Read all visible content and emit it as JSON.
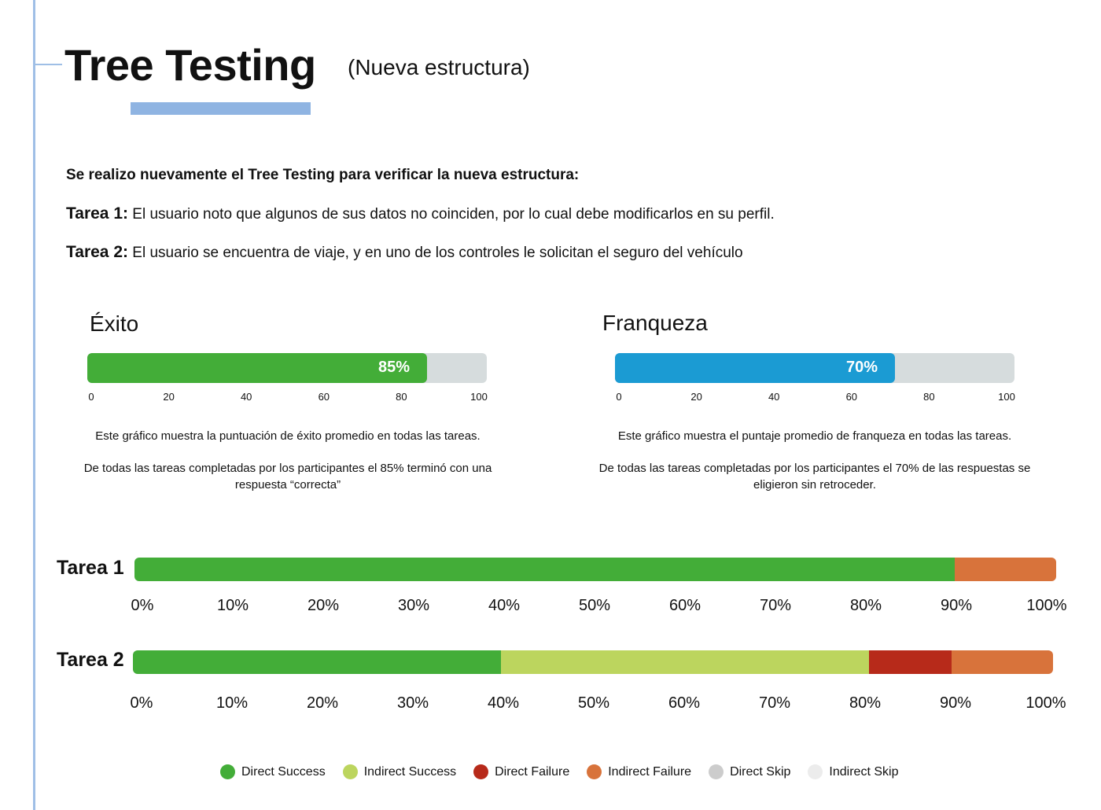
{
  "header": {
    "title": "Tree Testing",
    "subtitle": "(Nueva estructura)"
  },
  "intro": {
    "lead": "Se realizo nuevamente el Tree Testing para verificar la nueva estructura:",
    "task1_label": "Tarea 1:",
    "task1_text": " El usuario noto que algunos de sus datos no coinciden, por lo cual debe modificarlos en su perfil.",
    "task2_label": "Tarea 2:",
    "task2_text": " El usuario se encuentra de viaje, y en uno de los controles le solicitan el seguro del vehículo"
  },
  "chart_data": [
    {
      "type": "bar",
      "title": "Éxito",
      "value": 85,
      "value_label": "85%",
      "xlim": [
        0,
        100
      ],
      "ticks": [
        "0",
        "20",
        "40",
        "60",
        "80",
        "100"
      ],
      "color": "#43ad38",
      "track_color": "#d6dcdd",
      "description_1": "Este gráfico muestra la puntuación de éxito promedio en todas las tareas.",
      "description_2": "De todas las tareas completadas por los participantes el 85% terminó con una respuesta “correcta”"
    },
    {
      "type": "bar",
      "title": "Franqueza",
      "value": 70,
      "value_label": "70%",
      "xlim": [
        0,
        100
      ],
      "ticks": [
        "0",
        "20",
        "40",
        "60",
        "80",
        "100"
      ],
      "color": "#1b9bd3",
      "track_color": "#d6dcdd",
      "description_1": "Este gráfico muestra el puntaje promedio de franqueza en todas las tareas.",
      "description_2": "De todas las tareas completadas por los participantes el 70% de las respuestas se eligieron sin retroceder."
    },
    {
      "type": "bar",
      "stacked": true,
      "orientation": "horizontal",
      "categories": [
        "Tarea 1",
        "Tarea 2"
      ],
      "series": [
        {
          "name": "Direct Success",
          "color": "#43ad38",
          "values": [
            89,
            40
          ]
        },
        {
          "name": "Indirect Success",
          "color": "#bcd55e",
          "values": [
            0,
            40
          ]
        },
        {
          "name": "Direct Failure",
          "color": "#b72a1a",
          "values": [
            0,
            9
          ]
        },
        {
          "name": "Indirect Failure",
          "color": "#d8733b",
          "values": [
            11,
            11
          ]
        },
        {
          "name": "Direct Skip",
          "color": "#cccccc",
          "values": [
            0,
            0
          ]
        },
        {
          "name": "Indirect Skip",
          "color": "#ececec",
          "values": [
            0,
            0
          ]
        }
      ],
      "xlim": [
        0,
        100
      ],
      "ticks": [
        "0%",
        "10%",
        "20%",
        "30%",
        "40%",
        "50%",
        "60%",
        "70%",
        "80%",
        "90%",
        "100%"
      ],
      "legend": "bottom"
    }
  ]
}
